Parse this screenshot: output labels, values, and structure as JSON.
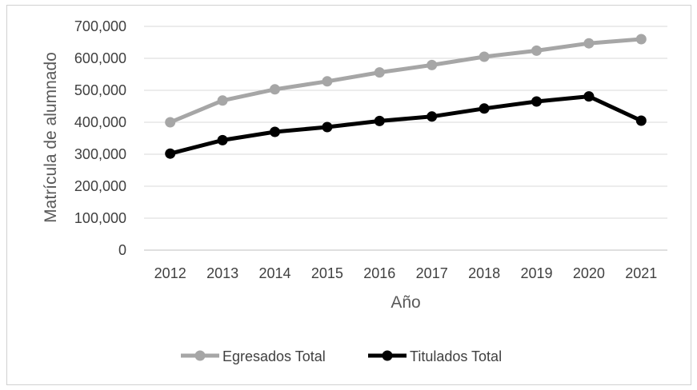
{
  "chart_data": {
    "type": "line",
    "title": "",
    "xlabel": "Año",
    "ylabel": "Matrícula de alumnado",
    "categories": [
      "2012",
      "2013",
      "2014",
      "2015",
      "2016",
      "2017",
      "2018",
      "2019",
      "2020",
      "2021"
    ],
    "yticks": [
      "0",
      "100,000",
      "200,000",
      "300,000",
      "400,000",
      "500,000",
      "600,000",
      "700,000"
    ],
    "ylim": [
      0,
      700000
    ],
    "grid": true,
    "legend_position": "bottom",
    "series": [
      {
        "name": "Egresados Total",
        "color": "#a6a6a6",
        "values": [
          400000,
          468000,
          503000,
          528000,
          556000,
          579000,
          605000,
          624000,
          647000,
          660000
        ]
      },
      {
        "name": "Titulados Total",
        "color": "#000000",
        "values": [
          302000,
          344000,
          370000,
          385000,
          404000,
          418000,
          443000,
          465000,
          481000,
          405000
        ]
      }
    ]
  }
}
